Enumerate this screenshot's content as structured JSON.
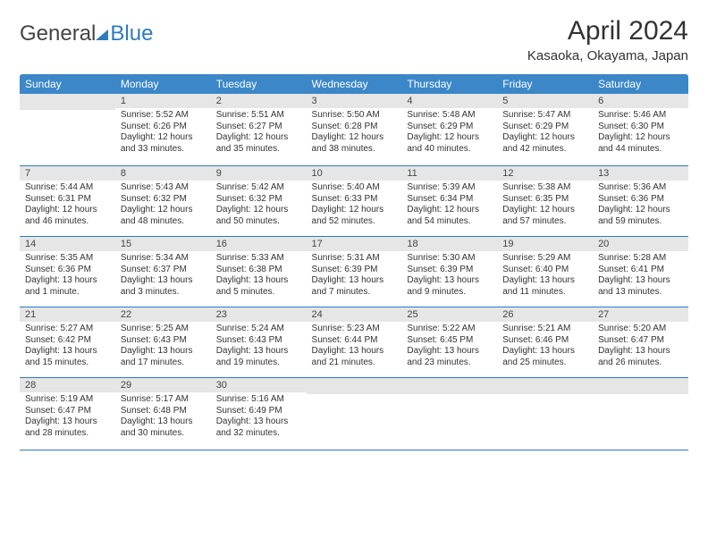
{
  "brand": {
    "text1": "General",
    "text2": "Blue"
  },
  "header": {
    "title": "April 2024",
    "location": "Kasaoka, Okayama, Japan"
  },
  "colors": {
    "accent": "#3b87c8",
    "rule": "#2d7bc0",
    "dayBarBg": "#e6e6e6",
    "text": "#333333"
  },
  "dayHeaders": [
    "Sunday",
    "Monday",
    "Tuesday",
    "Wednesday",
    "Thursday",
    "Friday",
    "Saturday"
  ],
  "weeks": [
    [
      {
        "n": "",
        "lines": []
      },
      {
        "n": "1",
        "lines": [
          "Sunrise: 5:52 AM",
          "Sunset: 6:26 PM",
          "Daylight: 12 hours",
          "and 33 minutes."
        ]
      },
      {
        "n": "2",
        "lines": [
          "Sunrise: 5:51 AM",
          "Sunset: 6:27 PM",
          "Daylight: 12 hours",
          "and 35 minutes."
        ]
      },
      {
        "n": "3",
        "lines": [
          "Sunrise: 5:50 AM",
          "Sunset: 6:28 PM",
          "Daylight: 12 hours",
          "and 38 minutes."
        ]
      },
      {
        "n": "4",
        "lines": [
          "Sunrise: 5:48 AM",
          "Sunset: 6:29 PM",
          "Daylight: 12 hours",
          "and 40 minutes."
        ]
      },
      {
        "n": "5",
        "lines": [
          "Sunrise: 5:47 AM",
          "Sunset: 6:29 PM",
          "Daylight: 12 hours",
          "and 42 minutes."
        ]
      },
      {
        "n": "6",
        "lines": [
          "Sunrise: 5:46 AM",
          "Sunset: 6:30 PM",
          "Daylight: 12 hours",
          "and 44 minutes."
        ]
      }
    ],
    [
      {
        "n": "7",
        "lines": [
          "Sunrise: 5:44 AM",
          "Sunset: 6:31 PM",
          "Daylight: 12 hours",
          "and 46 minutes."
        ]
      },
      {
        "n": "8",
        "lines": [
          "Sunrise: 5:43 AM",
          "Sunset: 6:32 PM",
          "Daylight: 12 hours",
          "and 48 minutes."
        ]
      },
      {
        "n": "9",
        "lines": [
          "Sunrise: 5:42 AM",
          "Sunset: 6:32 PM",
          "Daylight: 12 hours",
          "and 50 minutes."
        ]
      },
      {
        "n": "10",
        "lines": [
          "Sunrise: 5:40 AM",
          "Sunset: 6:33 PM",
          "Daylight: 12 hours",
          "and 52 minutes."
        ]
      },
      {
        "n": "11",
        "lines": [
          "Sunrise: 5:39 AM",
          "Sunset: 6:34 PM",
          "Daylight: 12 hours",
          "and 54 minutes."
        ]
      },
      {
        "n": "12",
        "lines": [
          "Sunrise: 5:38 AM",
          "Sunset: 6:35 PM",
          "Daylight: 12 hours",
          "and 57 minutes."
        ]
      },
      {
        "n": "13",
        "lines": [
          "Sunrise: 5:36 AM",
          "Sunset: 6:36 PM",
          "Daylight: 12 hours",
          "and 59 minutes."
        ]
      }
    ],
    [
      {
        "n": "14",
        "lines": [
          "Sunrise: 5:35 AM",
          "Sunset: 6:36 PM",
          "Daylight: 13 hours",
          "and 1 minute."
        ]
      },
      {
        "n": "15",
        "lines": [
          "Sunrise: 5:34 AM",
          "Sunset: 6:37 PM",
          "Daylight: 13 hours",
          "and 3 minutes."
        ]
      },
      {
        "n": "16",
        "lines": [
          "Sunrise: 5:33 AM",
          "Sunset: 6:38 PM",
          "Daylight: 13 hours",
          "and 5 minutes."
        ]
      },
      {
        "n": "17",
        "lines": [
          "Sunrise: 5:31 AM",
          "Sunset: 6:39 PM",
          "Daylight: 13 hours",
          "and 7 minutes."
        ]
      },
      {
        "n": "18",
        "lines": [
          "Sunrise: 5:30 AM",
          "Sunset: 6:39 PM",
          "Daylight: 13 hours",
          "and 9 minutes."
        ]
      },
      {
        "n": "19",
        "lines": [
          "Sunrise: 5:29 AM",
          "Sunset: 6:40 PM",
          "Daylight: 13 hours",
          "and 11 minutes."
        ]
      },
      {
        "n": "20",
        "lines": [
          "Sunrise: 5:28 AM",
          "Sunset: 6:41 PM",
          "Daylight: 13 hours",
          "and 13 minutes."
        ]
      }
    ],
    [
      {
        "n": "21",
        "lines": [
          "Sunrise: 5:27 AM",
          "Sunset: 6:42 PM",
          "Daylight: 13 hours",
          "and 15 minutes."
        ]
      },
      {
        "n": "22",
        "lines": [
          "Sunrise: 5:25 AM",
          "Sunset: 6:43 PM",
          "Daylight: 13 hours",
          "and 17 minutes."
        ]
      },
      {
        "n": "23",
        "lines": [
          "Sunrise: 5:24 AM",
          "Sunset: 6:43 PM",
          "Daylight: 13 hours",
          "and 19 minutes."
        ]
      },
      {
        "n": "24",
        "lines": [
          "Sunrise: 5:23 AM",
          "Sunset: 6:44 PM",
          "Daylight: 13 hours",
          "and 21 minutes."
        ]
      },
      {
        "n": "25",
        "lines": [
          "Sunrise: 5:22 AM",
          "Sunset: 6:45 PM",
          "Daylight: 13 hours",
          "and 23 minutes."
        ]
      },
      {
        "n": "26",
        "lines": [
          "Sunrise: 5:21 AM",
          "Sunset: 6:46 PM",
          "Daylight: 13 hours",
          "and 25 minutes."
        ]
      },
      {
        "n": "27",
        "lines": [
          "Sunrise: 5:20 AM",
          "Sunset: 6:47 PM",
          "Daylight: 13 hours",
          "and 26 minutes."
        ]
      }
    ],
    [
      {
        "n": "28",
        "lines": [
          "Sunrise: 5:19 AM",
          "Sunset: 6:47 PM",
          "Daylight: 13 hours",
          "and 28 minutes."
        ]
      },
      {
        "n": "29",
        "lines": [
          "Sunrise: 5:17 AM",
          "Sunset: 6:48 PM",
          "Daylight: 13 hours",
          "and 30 minutes."
        ]
      },
      {
        "n": "30",
        "lines": [
          "Sunrise: 5:16 AM",
          "Sunset: 6:49 PM",
          "Daylight: 13 hours",
          "and 32 minutes."
        ]
      },
      {
        "n": "",
        "lines": []
      },
      {
        "n": "",
        "lines": []
      },
      {
        "n": "",
        "lines": []
      },
      {
        "n": "",
        "lines": []
      }
    ]
  ]
}
